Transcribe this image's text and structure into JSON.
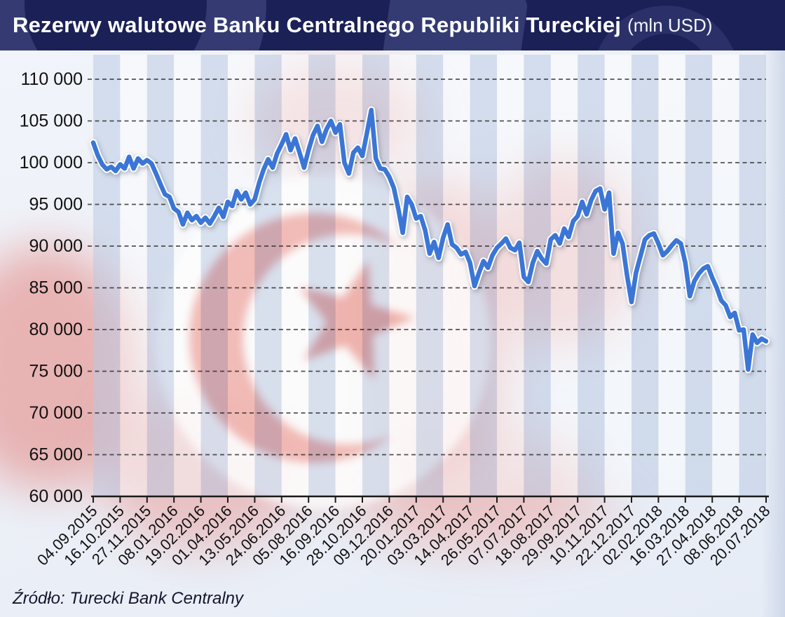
{
  "header": {
    "title": "Rezerwy walutowe Banku Centralnego Republiki Tureckiej",
    "title_suffix": "(mln USD)"
  },
  "source": {
    "label": "Źródło: Turecki Bank Centralny"
  },
  "colors": {
    "header_bg": "#1b2057",
    "header_text": "#ffffff",
    "line_blue": "#3b76d6",
    "line_casing": "#ffffff",
    "grid": "#2a2a2a",
    "axis": "#1a1a1a",
    "label_text": "#111111",
    "stripe_blue": "rgba(183,199,226,0.5)",
    "stripe_white": "rgba(255,255,255,0.45)",
    "flag_red": "#e05a4d",
    "flag_star_red": "#db5244",
    "flag_white": "#fbfaf9"
  },
  "chart_data": {
    "type": "line",
    "title": "Rezerwy walutowe Banku Centralnego Republiki Tureckiej (mln USD)",
    "xlabel": "",
    "ylabel": "",
    "ylim": [
      60000,
      110000
    ],
    "ytick_step": 5000,
    "y_tick_labels": [
      "110 000",
      "105 000",
      "100 000",
      "95 000",
      "90 000",
      "85 000",
      "80 000",
      "75 000",
      "70 000",
      "65 000",
      "60 000"
    ],
    "grid": "dashed horizontal gridlines",
    "legend_position": "none",
    "x_frequency": "weekly data, every 6th week labeled",
    "x_tick_labels": [
      "04.09.2015",
      "16.10.2015",
      "27.11.2015",
      "08.01.2016",
      "19.02.2016",
      "01.04.2016",
      "13.05.2016",
      "24.06.2016",
      "05.08.2016",
      "16.09.2016",
      "28.10.2016",
      "09.12.2016",
      "20.01.2017",
      "03.03.2017",
      "14.04.2017",
      "26.05.2017",
      "07.07.2017",
      "18.08.2017",
      "29.09.2017",
      "10.11.2017",
      "22.12.2017",
      "02.02.2018",
      "16.03.2018",
      "27.04.2018",
      "08.06.2018",
      "20.07.2018"
    ],
    "series": [
      {
        "name": "Rezerwy walutowe (mln USD)",
        "values": [
          102400,
          100900,
          99800,
          99200,
          99500,
          99000,
          99800,
          99300,
          100700,
          99300,
          100500,
          99900,
          100300,
          99900,
          98700,
          97400,
          96200,
          95900,
          94500,
          94100,
          92600,
          94000,
          93100,
          93600,
          92800,
          93400,
          92700,
          93600,
          94600,
          93500,
          95300,
          94800,
          96600,
          95600,
          96400,
          95000,
          95600,
          97600,
          99200,
          100400,
          99400,
          101100,
          102200,
          103400,
          101500,
          102900,
          101200,
          99400,
          101500,
          103300,
          104400,
          102500,
          104000,
          105000,
          103600,
          104600,
          100000,
          98700,
          101200,
          101800,
          100800,
          103500,
          106300,
          100500,
          99300,
          99200,
          98300,
          97000,
          94500,
          91600,
          95900,
          95000,
          93300,
          93600,
          91900,
          89100,
          90500,
          88600,
          91000,
          92600,
          90200,
          89800,
          89000,
          89300,
          88000,
          85200,
          86800,
          88200,
          87400,
          88900,
          89800,
          90300,
          90900,
          89800,
          89500,
          90400,
          86300,
          85700,
          88000,
          89400,
          88500,
          87900,
          90800,
          91300,
          90300,
          92100,
          91100,
          93000,
          93600,
          95300,
          93800,
          95500,
          96600,
          96900,
          94400,
          96400,
          89100,
          91600,
          90300,
          86500,
          83300,
          86800,
          88800,
          90800,
          91300,
          91500,
          90300,
          88900,
          89400,
          90100,
          90700,
          90300,
          88000,
          84000,
          85800,
          86700,
          87300,
          87600,
          86200,
          85000,
          83500,
          82900,
          81500,
          82000,
          79900,
          80000,
          75200,
          79400,
          78400,
          78900,
          78600
        ]
      }
    ],
    "source": "Źródło: Turecki Bank Centralny"
  }
}
